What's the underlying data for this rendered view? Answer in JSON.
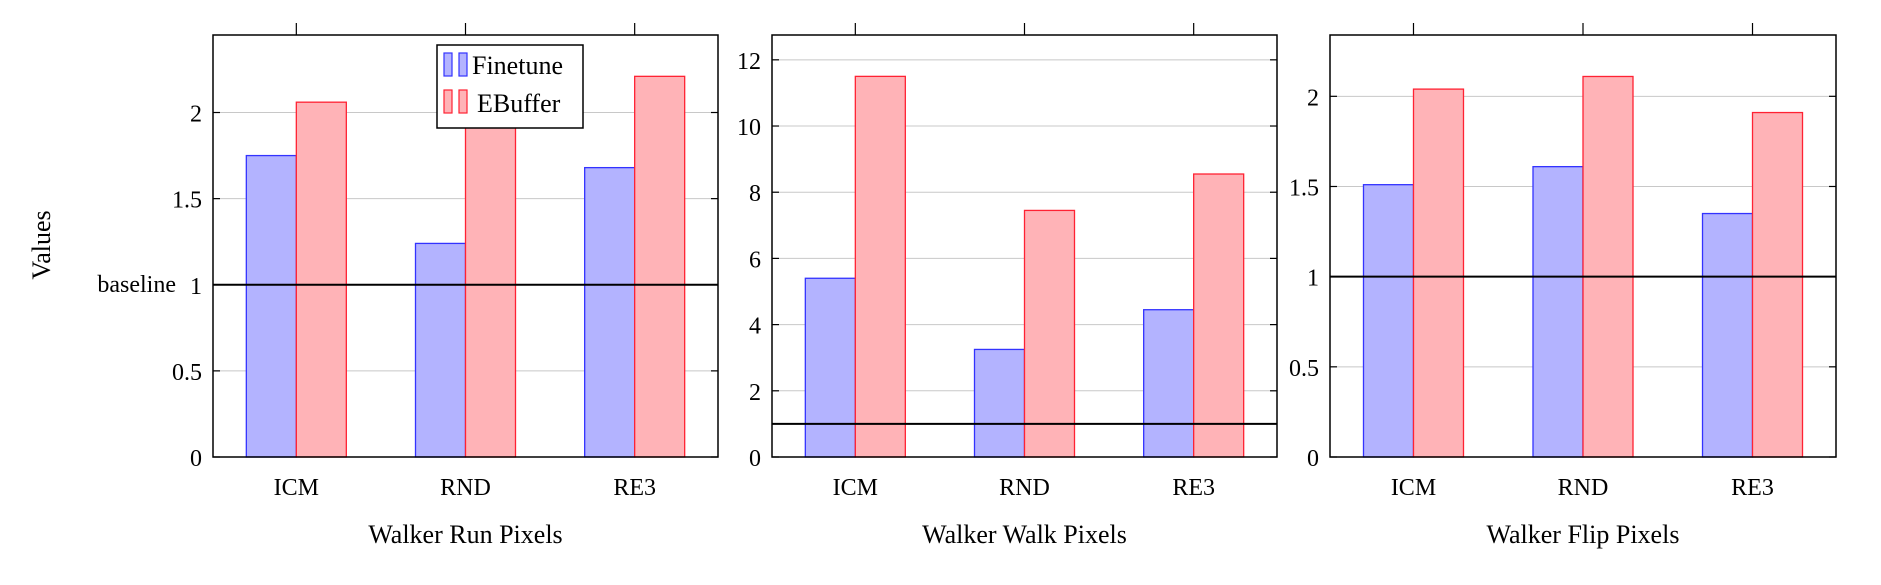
{
  "figure": {
    "ylabel": "Values",
    "baseline_label": "baseline",
    "legend": [
      {
        "name": "Finetune",
        "fill": "#b3b3ff",
        "stroke": "#3333ff"
      },
      {
        "name": "EBuffer",
        "fill": "#ffb3b7",
        "stroke": "#ff2233"
      }
    ]
  },
  "chart_data": [
    {
      "type": "bar",
      "categories": [
        "ICM",
        "RND",
        "RE3"
      ],
      "series": [
        {
          "name": "Finetune",
          "values": [
            1.75,
            1.24,
            1.68
          ]
        },
        {
          "name": "EBuffer",
          "values": [
            2.06,
            1.98,
            2.21
          ]
        }
      ],
      "xlabel": "Walker Run Pixels",
      "ylabel": "Values",
      "ylim": [
        0,
        2.45
      ],
      "yticks": [
        0,
        0.5,
        1,
        1.5,
        2
      ],
      "ytick_labels": [
        "0",
        "0.5",
        "1",
        "1.5",
        "2"
      ],
      "baseline": 1,
      "grid": "horizontal",
      "legend_position": "top-center"
    },
    {
      "type": "bar",
      "categories": [
        "ICM",
        "RND",
        "RE3"
      ],
      "series": [
        {
          "name": "Finetune",
          "values": [
            5.4,
            3.25,
            4.45
          ]
        },
        {
          "name": "EBuffer",
          "values": [
            11.5,
            7.45,
            8.55
          ]
        }
      ],
      "xlabel": "Walker Walk Pixels",
      "ylim": [
        0,
        12.75
      ],
      "yticks": [
        0,
        2,
        4,
        6,
        8,
        10,
        12
      ],
      "ytick_labels": [
        "0",
        "2",
        "4",
        "6",
        "8",
        "10",
        "12"
      ],
      "baseline": 1,
      "grid": "horizontal"
    },
    {
      "type": "bar",
      "categories": [
        "ICM",
        "RND",
        "RE3"
      ],
      "series": [
        {
          "name": "Finetune",
          "values": [
            1.51,
            1.61,
            1.35
          ]
        },
        {
          "name": "EBuffer",
          "values": [
            2.04,
            2.11,
            1.91
          ]
        }
      ],
      "xlabel": "Walker Flip Pixels",
      "ylim": [
        0,
        2.34
      ],
      "yticks": [
        0,
        0.5,
        1,
        1.5,
        2
      ],
      "ytick_labels": [
        "0",
        "0.5",
        "1",
        "1.5",
        "2"
      ],
      "baseline": 1,
      "grid": "horizontal"
    }
  ]
}
